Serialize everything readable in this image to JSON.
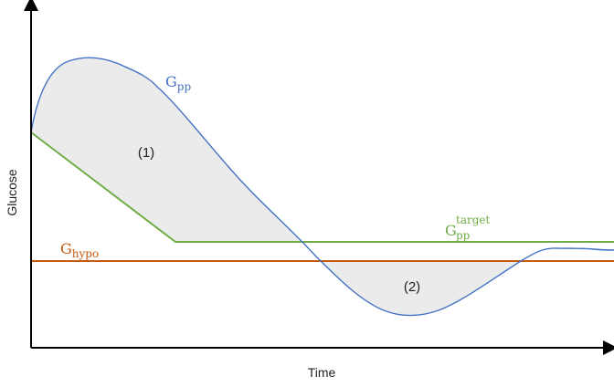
{
  "diagram": {
    "axes": {
      "x_label": "Time",
      "y_label": "Glucose"
    },
    "curves": {
      "g_pp": {
        "base": "G",
        "sub": "pp",
        "color": "#4472C4"
      },
      "g_pp_target": {
        "base": "G",
        "sub": "pp",
        "sup": "target",
        "color": "#70AD47"
      },
      "g_hypo": {
        "base": "G",
        "sub": "hypo",
        "color": "#C55A11"
      }
    },
    "regions": [
      {
        "label": "(1)",
        "fill": "#EBEBEB"
      },
      {
        "label": "(2)",
        "fill": "#EBEBEB"
      }
    ],
    "axis_color": "#000000"
  }
}
